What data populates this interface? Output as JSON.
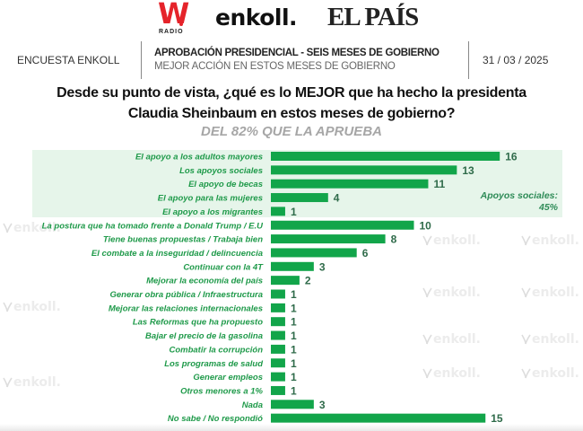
{
  "logos": {
    "w_radio_mark": "W",
    "w_radio_text": "RADIO",
    "enkoll": "enkoll.",
    "elpais": "EL PAÍS"
  },
  "header": {
    "left": "ENCUESTA ENKOLL",
    "title": "APROBACIÓN PRESIDENCIAL - SEIS MESES DE GOBIERNO",
    "subtitle": "MEJOR ACCIÓN EN ESTOS MESES DE GOBIERNO",
    "date": "31 / 03 / 2025"
  },
  "question": {
    "line1": "Desde su punto de vista, ¿qué es lo MEJOR que ha hecho la presidenta",
    "line2": "Claudia Sheinbaum en estos meses de gobierno?",
    "subtitle": "DEL 82% QUE LA APRUEBA"
  },
  "watermark_text": "enkoll.",
  "highlight": {
    "label_line1": "Apoyos sociales:",
    "label_line2": "45%"
  },
  "colors": {
    "bar": "#12a54a",
    "label": "#1f9a4a",
    "value": "#2f6b4a",
    "highlight_bg": "#e6f5ea"
  },
  "chart_data": {
    "type": "bar",
    "orientation": "horizontal",
    "title": "Desde su punto de vista, ¿qué es lo MEJOR que ha hecho la presidenta Claudia Sheinbaum en estos meses de gobierno?",
    "subtitle": "DEL 82% QUE LA APRUEBA",
    "unit": "%",
    "xlim": [
      0,
      16
    ],
    "grid": false,
    "categories": [
      "El apoyo a los adultos mayores",
      "Los apoyos sociales",
      "El apoyo de becas",
      "El apoyo para las mujeres",
      "El apoyo a los migrantes",
      "La postura que ha tomado frente a Donald Trump / E.U",
      "Tiene buenas propuestas / Trabaja bien",
      "El combate a la inseguridad / delincuencia",
      "Continuar con la 4T",
      "Mejorar la economía del país",
      "Generar obra pública / Infraestructura",
      "Mejorar las relaciones internacionales",
      "Las Reformas que ha propuesto",
      "Bajar el precio de la gasolina",
      "Combatir la corrupción",
      "Los programas de salud",
      "Generar empleos",
      "Otros menores a 1%",
      "Nada",
      "No sabe / No respondió"
    ],
    "values": [
      16,
      13,
      11,
      4,
      1,
      10,
      8,
      6,
      3,
      2,
      1,
      1,
      1,
      1,
      1,
      1,
      1,
      1,
      3,
      15
    ],
    "annotation": "Apoyos sociales: 45%",
    "highlighted_group": [
      "El apoyo a los adultos mayores",
      "Los apoyos sociales",
      "El apoyo de becas",
      "El apoyo para las mujeres",
      "El apoyo a los migrantes"
    ]
  }
}
